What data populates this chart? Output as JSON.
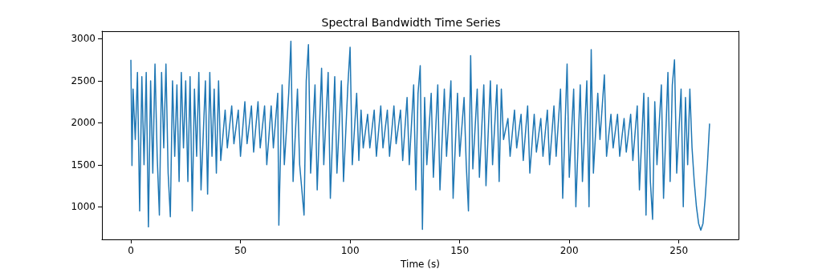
{
  "chart_data": {
    "type": "line",
    "title": "Spectral Bandwidth Time Series",
    "xlabel": "Time (s)",
    "color": "#1f77b4",
    "x": [
      0,
      0.5,
      1,
      2,
      3,
      4,
      5,
      6,
      7,
      8,
      9,
      10,
      11,
      12,
      13,
      14,
      15,
      16,
      17,
      18,
      19,
      20,
      21,
      22,
      23,
      24,
      25,
      26,
      27,
      28,
      29,
      30,
      31,
      32,
      34,
      35,
      36,
      37,
      38,
      39,
      40,
      41,
      43,
      44,
      46,
      47,
      49,
      50,
      52,
      53,
      55,
      56,
      58,
      59,
      61,
      62,
      64,
      65,
      67,
      67.5,
      69,
      70,
      72,
      73,
      74,
      76,
      77,
      79,
      80,
      81,
      82,
      84,
      85,
      87,
      88,
      90,
      91,
      93,
      94,
      96,
      97,
      99,
      100,
      101,
      103,
      104,
      105,
      106,
      108,
      109,
      111,
      112,
      114,
      115,
      117,
      118,
      120,
      121,
      123,
      124,
      126,
      127,
      129,
      130,
      131,
      132,
      133,
      134,
      135,
      137,
      138,
      140,
      141,
      143,
      144,
      146,
      147,
      149,
      150,
      152,
      153,
      154,
      155,
      156,
      158,
      159,
      161,
      162,
      164,
      165,
      167,
      168,
      169,
      170,
      172,
      173,
      175,
      176,
      178,
      179,
      181,
      182,
      184,
      185,
      187,
      188,
      190,
      191,
      193,
      194,
      196,
      197,
      199,
      200,
      202,
      203,
      205,
      206,
      208,
      209,
      210,
      211,
      213,
      214,
      216,
      217,
      219,
      220,
      222,
      223,
      225,
      226,
      228,
      229,
      231,
      232,
      234,
      235,
      236,
      237,
      238,
      239,
      240,
      242,
      243,
      245,
      246,
      247,
      248,
      249,
      251,
      252,
      253,
      254,
      255,
      256,
      257,
      258,
      259,
      260,
      261,
      262,
      263,
      264
    ],
    "values": [
      2750,
      1490,
      2400,
      1800,
      2600,
      950,
      2550,
      1500,
      2600,
      760,
      2500,
      1400,
      2700,
      1600,
      900,
      2600,
      1700,
      2700,
      1400,
      880,
      2500,
      1600,
      2450,
      1300,
      2600,
      1700,
      2500,
      1300,
      2550,
      950,
      2400,
      1600,
      2600,
      1200,
      2500,
      1150,
      2600,
      1600,
      2400,
      1400,
      2500,
      1550,
      2150,
      1700,
      2200,
      1750,
      2150,
      1600,
      2250,
      1750,
      2200,
      1650,
      2250,
      1700,
      2200,
      1500,
      2200,
      1700,
      2350,
      780,
      2450,
      1500,
      2350,
      2970,
      1300,
      2400,
      1500,
      900,
      2500,
      2930,
      1400,
      2450,
      1200,
      2650,
      1500,
      2600,
      1100,
      2550,
      1400,
      2500,
      1300,
      2450,
      2900,
      1500,
      2350,
      1550,
      2150,
      1700,
      2100,
      1700,
      2150,
      1600,
      2200,
      1700,
      2150,
      1600,
      2200,
      1750,
      2150,
      1550,
      2300,
      1500,
      2450,
      1200,
      2350,
      2680,
      730,
      2300,
      1500,
      2350,
      1350,
      2450,
      1200,
      2400,
      1600,
      2500,
      1100,
      2350,
      1600,
      2300,
      1500,
      950,
      2800,
      1450,
      2400,
      1350,
      2450,
      1250,
      2500,
      1500,
      2450,
      1300,
      2400,
      1800,
      2050,
      1600,
      2150,
      1700,
      2100,
      1550,
      2200,
      1400,
      2100,
      1650,
      2050,
      1600,
      2150,
      1500,
      2200,
      1600,
      2400,
      1100,
      2700,
      1350,
      2400,
      1000,
      2450,
      1300,
      2500,
      1000,
      2870,
      1400,
      2350,
      1800,
      2570,
      1600,
      2100,
      1700,
      2100,
      1600,
      2050,
      1650,
      2100,
      1550,
      2200,
      1200,
      2350,
      900,
      2300,
      1300,
      850,
      2250,
      1500,
      2450,
      1100,
      2600,
      1300,
      2450,
      2750,
      1400,
      2400,
      1000,
      2300,
      1500,
      2400,
      1700,
      1300,
      1000,
      800,
      720,
      800,
      1100,
      1500,
      1990
    ],
    "xlim": [
      -13.2,
      277.2
    ],
    "xticks": [
      0,
      50,
      100,
      150,
      200,
      250
    ],
    "ylim": [
      610,
      3090
    ],
    "yticks": [
      1000,
      1500,
      2000,
      2500,
      3000
    ],
    "grid": false,
    "marker": "none",
    "line_style": "solid"
  }
}
